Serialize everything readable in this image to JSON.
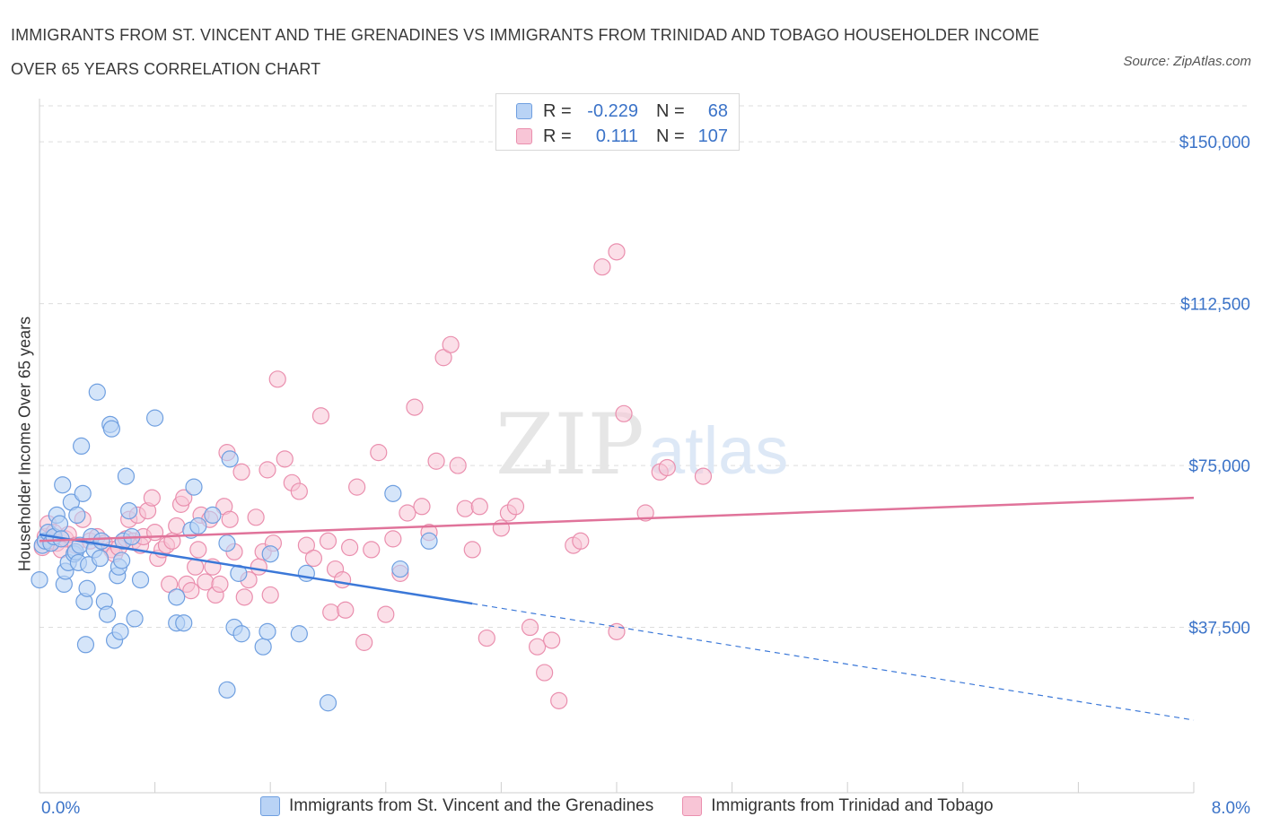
{
  "title_line1": "IMMIGRANTS FROM ST. VINCENT AND THE GRENADINES VS IMMIGRANTS FROM TRINIDAD AND TOBAGO HOUSEHOLDER INCOME",
  "title_line2": "OVER 65 YEARS CORRELATION CHART",
  "source": "Source: ZipAtlas.com",
  "watermark": {
    "zip": "ZIP",
    "atlas": "atlas"
  },
  "legend": {
    "rows": [
      {
        "r_label": "R =",
        "r_value": "-0.229",
        "n_label": "N =",
        "n_value": "68"
      },
      {
        "r_label": "R =",
        "r_value": "0.111",
        "n_label": "N =",
        "n_value": "107"
      }
    ]
  },
  "colors": {
    "blue_fill": "#b9d3f5",
    "blue_stroke": "#6f9fe0",
    "blue_line": "#3b78d8",
    "pink_fill": "#f8c5d6",
    "pink_stroke": "#ea8fae",
    "pink_line": "#e0739a",
    "axis_text": "#3b73c8",
    "grid": "#dddddd"
  },
  "chart_data": {
    "type": "scatter",
    "title": "IMMIGRANTS FROM ST. VINCENT AND THE GRENADINES VS IMMIGRANTS FROM TRINIDAD AND TOBAGO HOUSEHOLDER INCOME OVER 65 YEARS CORRELATION CHART",
    "xlabel": "",
    "ylabel": "Householder Income Over 65 years",
    "xlim": [
      0,
      8
    ],
    "ylim": [
      0,
      160000
    ],
    "x_tick_labels": [
      "0.0%",
      "8.0%"
    ],
    "y_ticks": [
      37500,
      75000,
      112500,
      150000
    ],
    "y_tick_labels": [
      "$37,500",
      "$75,000",
      "$112,500",
      "$150,000"
    ],
    "grid": "horizontal dashed",
    "legend_position": "top-center",
    "series": [
      {
        "name": "Immigrants from St. Vincent and the Grenadines",
        "color": "#6f9fe0",
        "trend": {
          "x_solid": [
            0,
            3.0
          ],
          "y_solid": [
            59000,
            43000
          ],
          "x_dashed": [
            3.0,
            8.0
          ],
          "y_dashed": [
            43000,
            16000
          ]
        },
        "points": [
          [
            0.0,
            48500
          ],
          [
            0.02,
            56500
          ],
          [
            0.04,
            57500
          ],
          [
            0.06,
            59500
          ],
          [
            0.08,
            57000
          ],
          [
            0.1,
            58500
          ],
          [
            0.12,
            63500
          ],
          [
            0.14,
            61500
          ],
          [
            0.15,
            58000
          ],
          [
            0.16,
            70500
          ],
          [
            0.17,
            47500
          ],
          [
            0.18,
            50500
          ],
          [
            0.2,
            52500
          ],
          [
            0.22,
            66500
          ],
          [
            0.24,
            54500
          ],
          [
            0.25,
            55000
          ],
          [
            0.26,
            63500
          ],
          [
            0.27,
            52500
          ],
          [
            0.28,
            56500
          ],
          [
            0.29,
            79500
          ],
          [
            0.3,
            68500
          ],
          [
            0.31,
            43500
          ],
          [
            0.32,
            33500
          ],
          [
            0.33,
            46500
          ],
          [
            0.34,
            52000
          ],
          [
            0.36,
            58500
          ],
          [
            0.38,
            55500
          ],
          [
            0.4,
            92000
          ],
          [
            0.42,
            53500
          ],
          [
            0.43,
            57500
          ],
          [
            0.45,
            43500
          ],
          [
            0.47,
            40500
          ],
          [
            0.49,
            84500
          ],
          [
            0.5,
            83500
          ],
          [
            0.52,
            34500
          ],
          [
            0.54,
            49500
          ],
          [
            0.55,
            51500
          ],
          [
            0.56,
            36500
          ],
          [
            0.57,
            53000
          ],
          [
            0.58,
            57500
          ],
          [
            0.6,
            72500
          ],
          [
            0.62,
            64500
          ],
          [
            0.64,
            58500
          ],
          [
            0.66,
            39500
          ],
          [
            0.7,
            48500
          ],
          [
            0.8,
            86000
          ],
          [
            0.95,
            44500
          ],
          [
            0.95,
            38500
          ],
          [
            1.0,
            38500
          ],
          [
            1.05,
            60000
          ],
          [
            1.07,
            70000
          ],
          [
            1.1,
            61000
          ],
          [
            1.2,
            63500
          ],
          [
            1.3,
            57000
          ],
          [
            1.3,
            23000
          ],
          [
            1.32,
            76500
          ],
          [
            1.35,
            37500
          ],
          [
            1.38,
            50000
          ],
          [
            1.4,
            36000
          ],
          [
            1.55,
            33000
          ],
          [
            1.58,
            36500
          ],
          [
            1.6,
            54500
          ],
          [
            1.8,
            36000
          ],
          [
            1.85,
            50000
          ],
          [
            2.0,
            20000
          ],
          [
            2.45,
            68500
          ],
          [
            2.5,
            51000
          ],
          [
            2.7,
            57500
          ]
        ]
      },
      {
        "name": "Immigrants from Trinidad and Tobago",
        "color": "#ea8fae",
        "trend": {
          "x": [
            0,
            8
          ],
          "y": [
            57500,
            67500
          ]
        },
        "points": [
          [
            0.02,
            56000
          ],
          [
            0.04,
            58500
          ],
          [
            0.06,
            61500
          ],
          [
            0.08,
            57500
          ],
          [
            0.1,
            59500
          ],
          [
            0.12,
            57000
          ],
          [
            0.15,
            55500
          ],
          [
            0.18,
            58000
          ],
          [
            0.2,
            59000
          ],
          [
            0.25,
            56500
          ],
          [
            0.3,
            62500
          ],
          [
            0.35,
            57500
          ],
          [
            0.4,
            58500
          ],
          [
            0.45,
            57000
          ],
          [
            0.5,
            55500
          ],
          [
            0.52,
            54500
          ],
          [
            0.55,
            56000
          ],
          [
            0.6,
            58000
          ],
          [
            0.62,
            62500
          ],
          [
            0.65,
            57500
          ],
          [
            0.68,
            63500
          ],
          [
            0.7,
            56500
          ],
          [
            0.72,
            58500
          ],
          [
            0.75,
            64500
          ],
          [
            0.78,
            67500
          ],
          [
            0.8,
            59500
          ],
          [
            0.82,
            53500
          ],
          [
            0.85,
            55500
          ],
          [
            0.88,
            56500
          ],
          [
            0.9,
            47500
          ],
          [
            0.92,
            57500
          ],
          [
            0.95,
            61000
          ],
          [
            0.98,
            66000
          ],
          [
            1.0,
            67500
          ],
          [
            1.02,
            47500
          ],
          [
            1.05,
            46000
          ],
          [
            1.08,
            51500
          ],
          [
            1.1,
            55500
          ],
          [
            1.12,
            63500
          ],
          [
            1.15,
            48000
          ],
          [
            1.18,
            62500
          ],
          [
            1.2,
            51500
          ],
          [
            1.22,
            45000
          ],
          [
            1.25,
            47500
          ],
          [
            1.28,
            65500
          ],
          [
            1.3,
            78000
          ],
          [
            1.32,
            62500
          ],
          [
            1.35,
            55000
          ],
          [
            1.4,
            73500
          ],
          [
            1.42,
            44500
          ],
          [
            1.45,
            48500
          ],
          [
            1.5,
            63000
          ],
          [
            1.52,
            51500
          ],
          [
            1.55,
            55000
          ],
          [
            1.58,
            74000
          ],
          [
            1.6,
            45000
          ],
          [
            1.62,
            57000
          ],
          [
            1.65,
            95000
          ],
          [
            1.7,
            76500
          ],
          [
            1.75,
            71000
          ],
          [
            1.8,
            69000
          ],
          [
            1.85,
            56500
          ],
          [
            1.9,
            53500
          ],
          [
            1.95,
            86500
          ],
          [
            2.0,
            57500
          ],
          [
            2.02,
            41000
          ],
          [
            2.05,
            51000
          ],
          [
            2.1,
            48500
          ],
          [
            2.12,
            41500
          ],
          [
            2.15,
            56000
          ],
          [
            2.2,
            70000
          ],
          [
            2.25,
            34000
          ],
          [
            2.3,
            55500
          ],
          [
            2.35,
            78000
          ],
          [
            2.4,
            40500
          ],
          [
            2.45,
            58000
          ],
          [
            2.5,
            50000
          ],
          [
            2.55,
            64000
          ],
          [
            2.6,
            88500
          ],
          [
            2.65,
            65500
          ],
          [
            2.7,
            59500
          ],
          [
            2.75,
            76000
          ],
          [
            2.8,
            100000
          ],
          [
            2.85,
            103000
          ],
          [
            2.9,
            75000
          ],
          [
            2.95,
            65000
          ],
          [
            3.0,
            55500
          ],
          [
            3.05,
            65500
          ],
          [
            3.1,
            35000
          ],
          [
            3.2,
            60500
          ],
          [
            3.25,
            64000
          ],
          [
            3.3,
            65500
          ],
          [
            3.4,
            37500
          ],
          [
            3.45,
            33000
          ],
          [
            3.5,
            27000
          ],
          [
            3.55,
            34500
          ],
          [
            3.6,
            20500
          ],
          [
            3.7,
            56500
          ],
          [
            3.75,
            57500
          ],
          [
            4.0,
            36500
          ],
          [
            3.9,
            121000
          ],
          [
            4.0,
            124500
          ],
          [
            4.05,
            87000
          ],
          [
            4.2,
            64000
          ],
          [
            4.3,
            73500
          ],
          [
            4.35,
            74500
          ],
          [
            4.6,
            72500
          ]
        ]
      }
    ]
  },
  "bottom_legend": [
    {
      "label": "Immigrants from St. Vincent and the Grenadines"
    },
    {
      "label": "Immigrants from Trinidad and Tobago"
    }
  ]
}
